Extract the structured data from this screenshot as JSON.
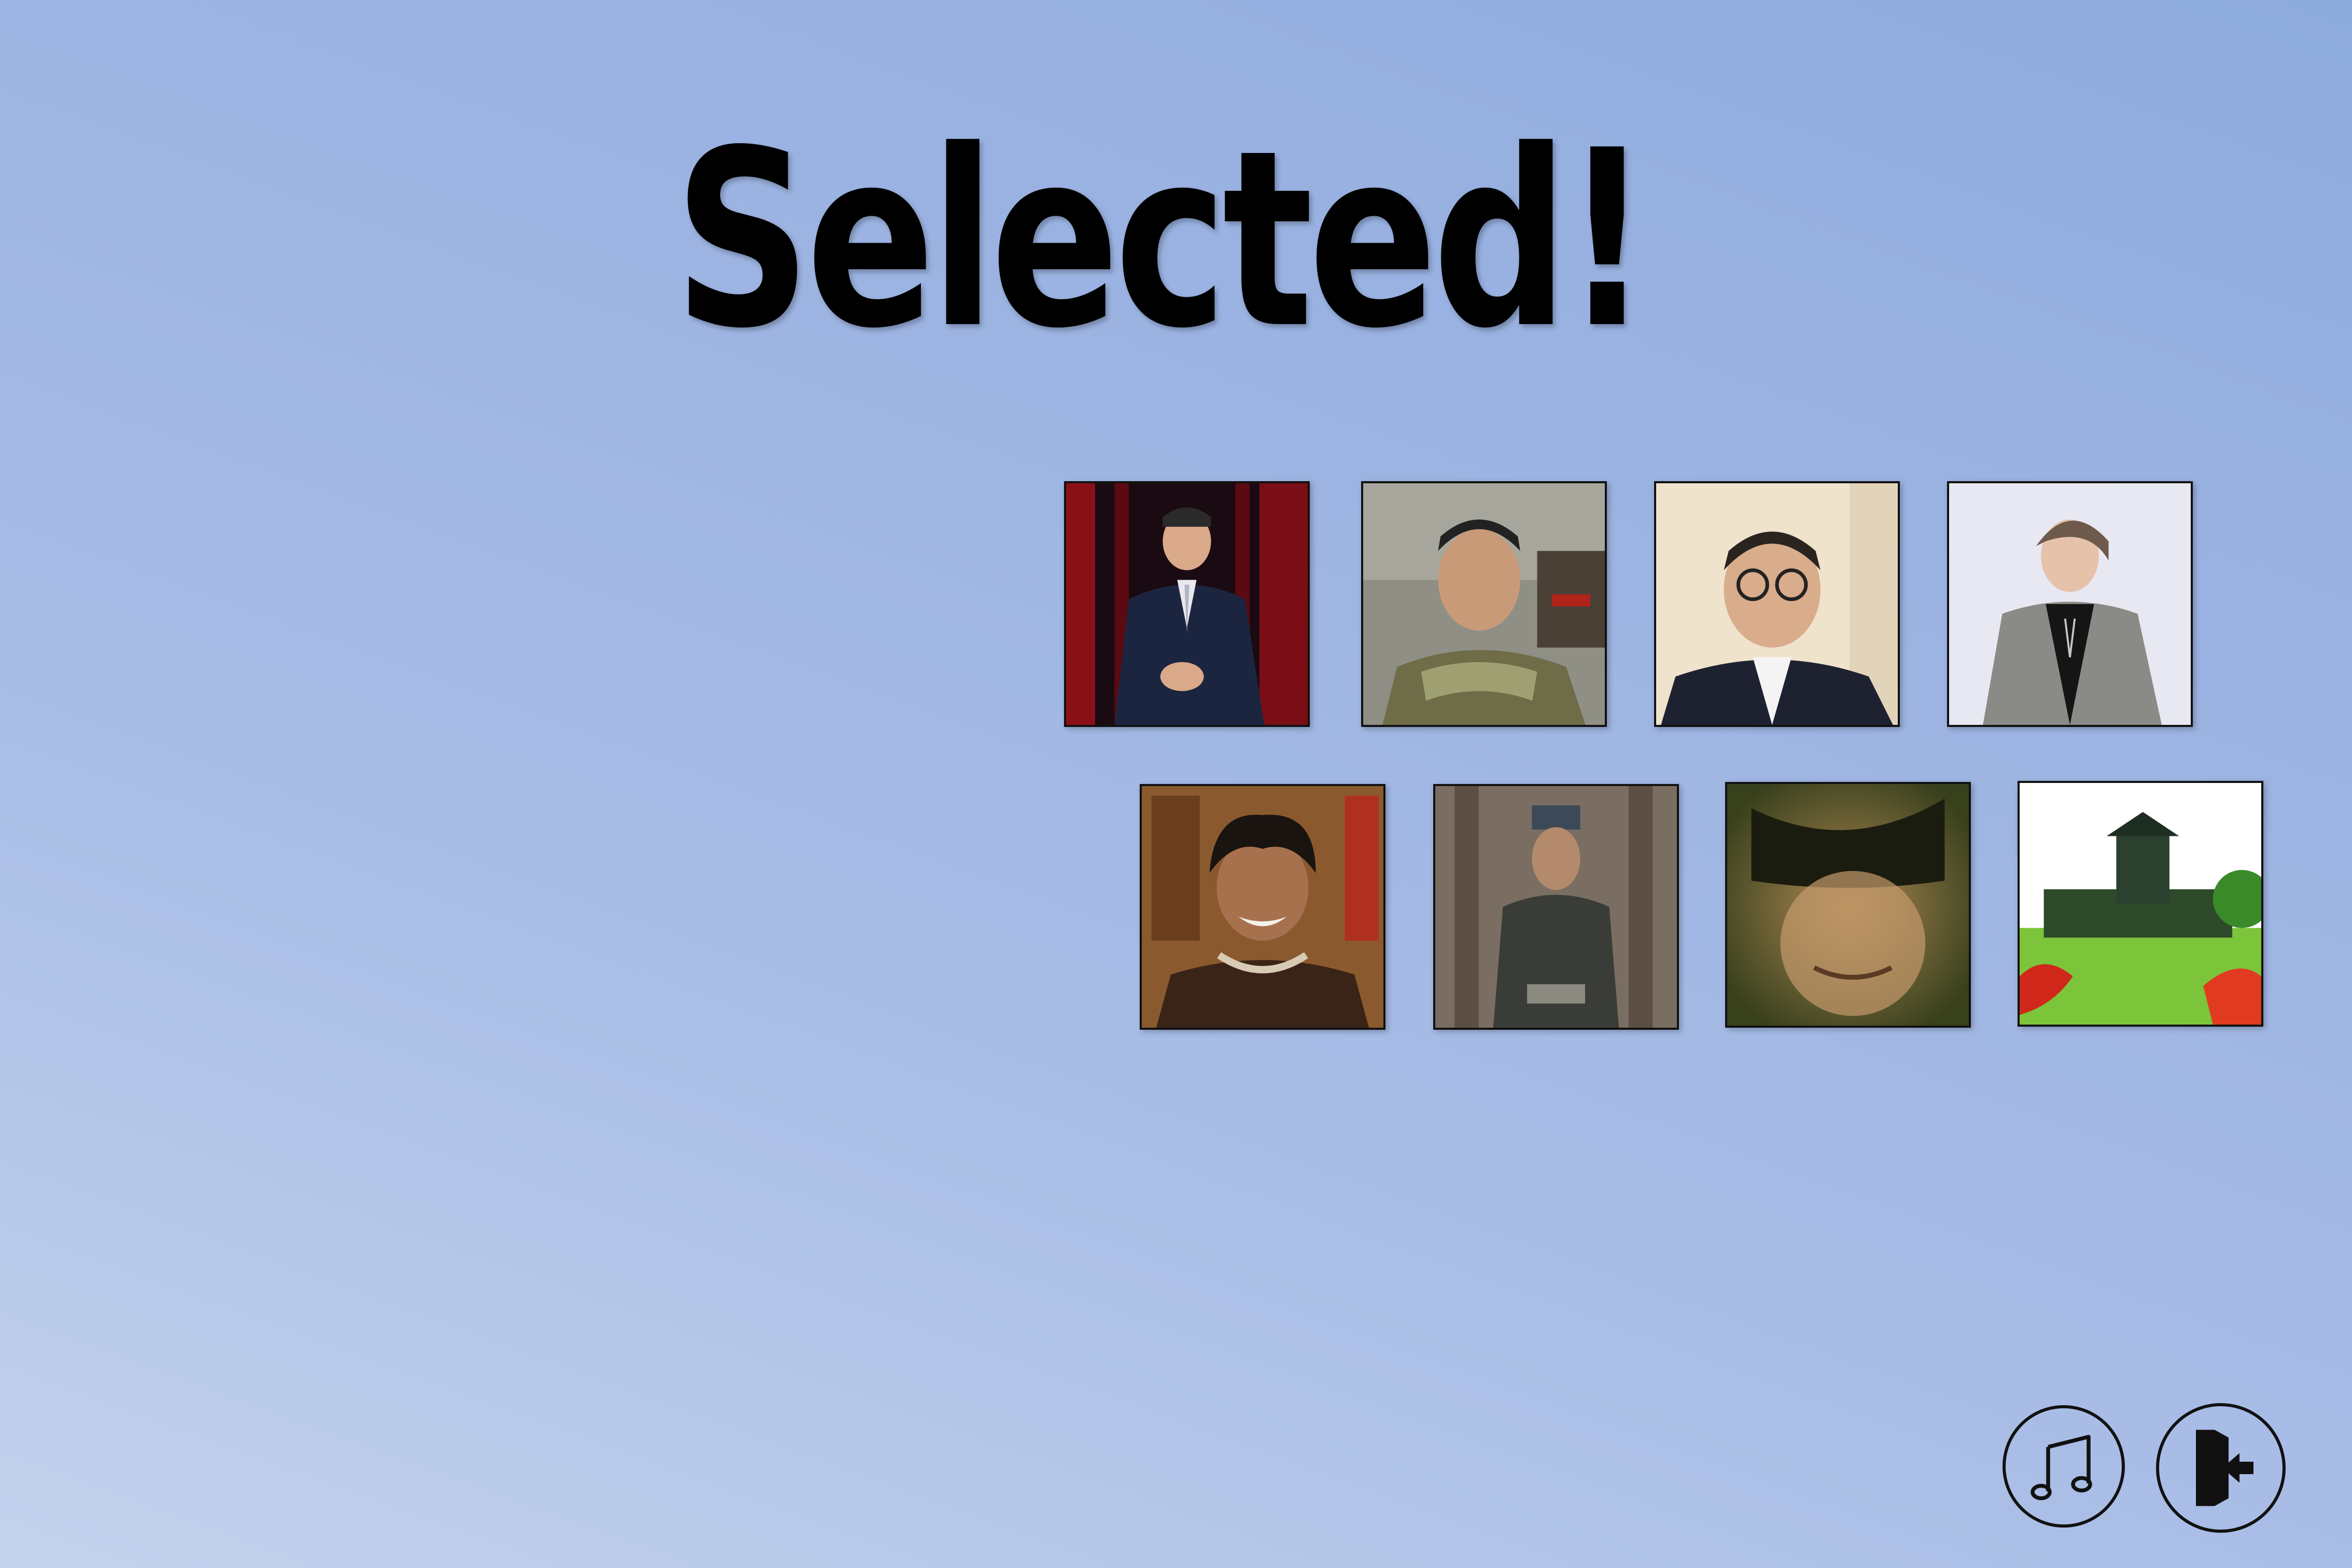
{
  "screen": {
    "title": "Selected!"
  },
  "selected_items": [
    {
      "name": "person-in-suit-on-stage"
    },
    {
      "name": "soldier-with-scarf"
    },
    {
      "name": "man-with-glasses"
    },
    {
      "name": "young-man-in-trench-coat"
    },
    {
      "name": "smiling-young-man"
    },
    {
      "name": "historical-drama-figure"
    },
    {
      "name": "masked-face-closeup"
    },
    {
      "name": "campus-building"
    }
  ],
  "controls": {
    "music_icon": "music-note-icon",
    "exit_icon": "exit-icon"
  },
  "colors": {
    "background_light": "#c3d2ec",
    "background_dark": "#8eabde",
    "text": "#000000"
  }
}
